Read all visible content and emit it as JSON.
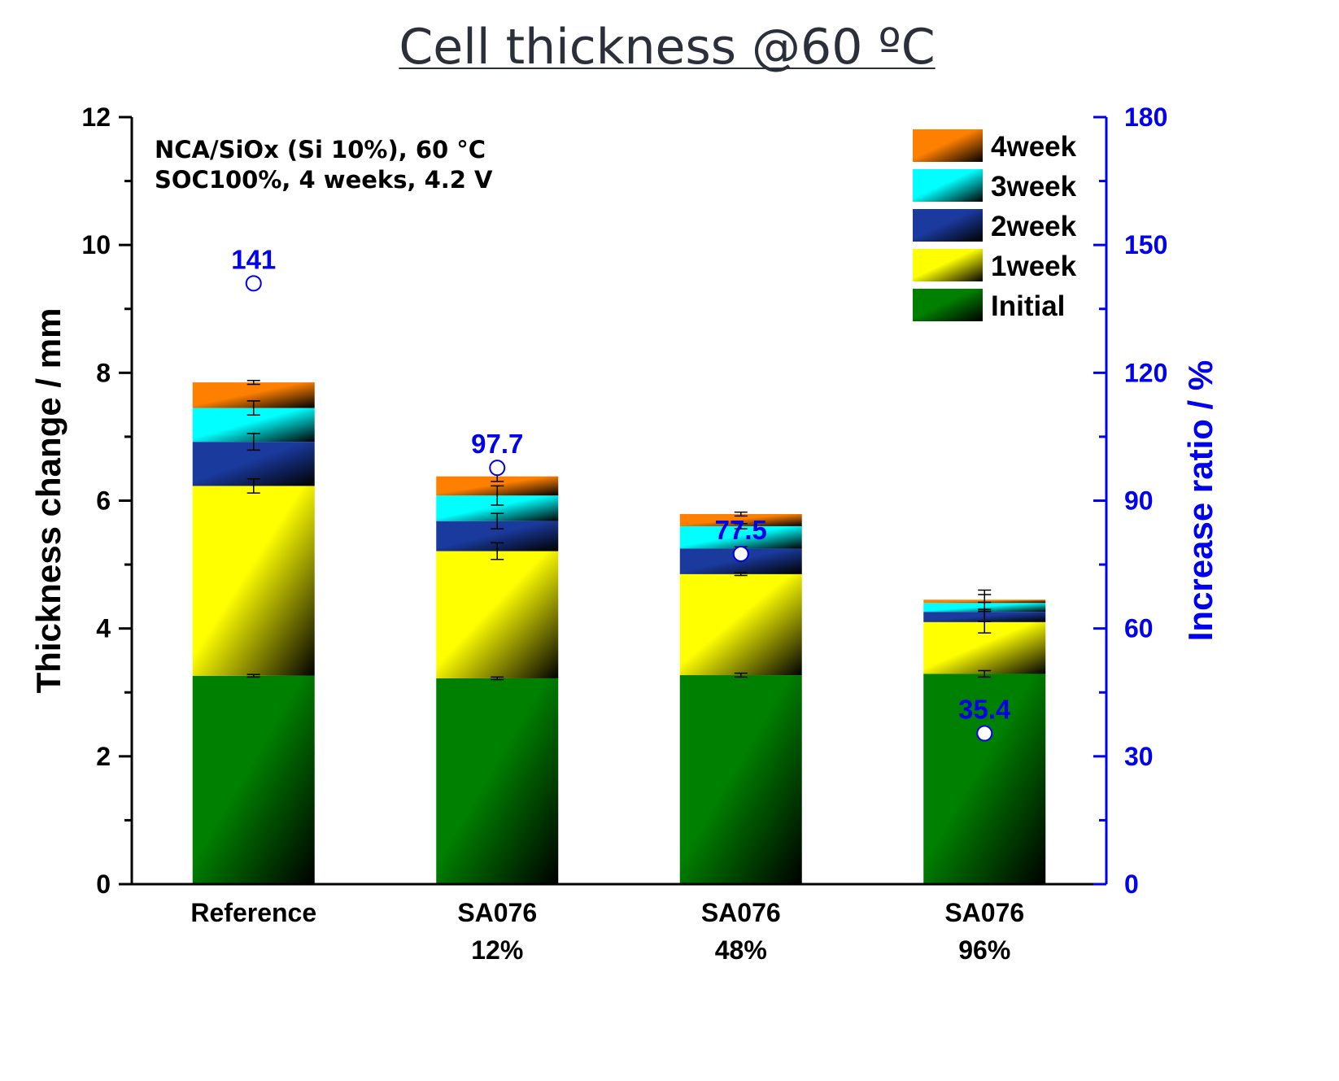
{
  "title": "Cell thickness @60 ºC",
  "chart_data": {
    "type": "bar",
    "stacked": true,
    "annotation": [
      "NCA/SiOx (Si 10%), 60 °C",
      "SOC100%, 4 weeks, 4.2 V"
    ],
    "categories": [
      [
        "Reference"
      ],
      [
        "SA076",
        "12%"
      ],
      [
        "SA076",
        "48%"
      ],
      [
        "SA076",
        "96%"
      ]
    ],
    "ylabel": "Thickness change / mm",
    "ylim": [
      0,
      12
    ],
    "yticks": [
      0,
      2,
      4,
      6,
      8,
      10,
      12
    ],
    "y2label": "Increase ratio / %",
    "y2lim": [
      0,
      180
    ],
    "y2ticks": [
      0,
      30,
      60,
      90,
      120,
      150,
      180
    ],
    "legend_position": "top-right",
    "series": [
      {
        "name": "Initial",
        "color": "#008000",
        "values": [
          3.26,
          3.22,
          3.27,
          3.29
        ],
        "errors": [
          0.02,
          0.02,
          0.03,
          0.05
        ]
      },
      {
        "name": "1week",
        "color": "#ffff00",
        "values": [
          2.97,
          1.99,
          1.58,
          0.81
        ],
        "errors": [
          0.11,
          0.13,
          0.02,
          0.17
        ]
      },
      {
        "name": "2week",
        "color": "#1a3a9e",
        "values": [
          0.69,
          0.47,
          0.4,
          0.16
        ],
        "errors": [
          0.13,
          0.12,
          0.03,
          0.15
        ]
      },
      {
        "name": "3week",
        "color": "#00ffff",
        "values": [
          0.53,
          0.4,
          0.35,
          0.14
        ],
        "errors": [
          0.11,
          0.15,
          0.04,
          0.13
        ]
      },
      {
        "name": "4week",
        "color": "#ff8000",
        "values": [
          0.4,
          0.3,
          0.19,
          0.05
        ],
        "errors": [
          0.03,
          0.08,
          0.03,
          0.15
        ]
      }
    ],
    "increase_ratio": {
      "values": [
        141,
        97.7,
        77.5,
        35.4
      ],
      "labels": [
        "141",
        "97.7",
        "77.5",
        "35.4"
      ],
      "markers": [
        "open",
        "open",
        "filled",
        "filled"
      ],
      "color": "#0000ee"
    }
  }
}
